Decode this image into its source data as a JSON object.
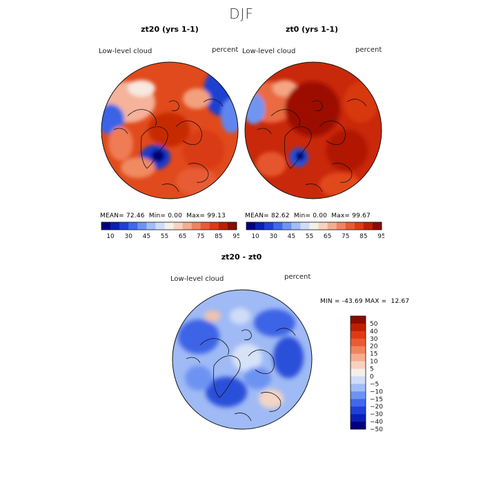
{
  "figure": {
    "season_title": "DJF",
    "colors": {
      "neg_strong": "#00007f",
      "neg_mid": "#2b57e0",
      "neg_light": "#bcd2f7",
      "neutral": "#f4efe8",
      "pos_light": "#f6bca2",
      "pos_mid": "#e8461a",
      "pos_strong": "#8b0a00"
    }
  },
  "panels": [
    {
      "id": "zt20",
      "title": "zt20 (yrs 1-1)",
      "variable_label": "Low-level cloud",
      "units_label": "percent",
      "stats": {
        "mean": "72.46",
        "min": "0.00",
        "max": "99.13"
      },
      "mean_label": "MEAN=",
      "min_label": "Min=",
      "max_label": "Max="
    },
    {
      "id": "zt0",
      "title": "zt0 (yrs 1-1)",
      "variable_label": "Low-level cloud",
      "units_label": "percent",
      "stats": {
        "mean": "82.62",
        "min": "0.00",
        "max": "99.67"
      },
      "mean_label": "MEAN=",
      "min_label": "Min=",
      "max_label": "Max="
    }
  ],
  "abs_colorbar": {
    "tick_labels": [
      "10",
      "30",
      "45",
      "55",
      "65",
      "75",
      "85",
      "95"
    ],
    "colors": [
      "#00007f",
      "#0a1fb5",
      "#1f3fd8",
      "#3f68ec",
      "#6d93f2",
      "#a1bcf6",
      "#cfdcf8",
      "#f3efe9",
      "#f8d2c0",
      "#f5ad8e",
      "#f0845f",
      "#ea5a33",
      "#df3a12",
      "#bf1e00",
      "#8b0a00"
    ]
  },
  "diff_panel": {
    "title": "zt20 - zt0",
    "variable_label": "Low-level cloud",
    "units_label": "percent",
    "min_label": "MIN =",
    "min_value": "-43.69",
    "max_label": "MAX =",
    "max_value": "12.67"
  },
  "diff_colorbar": {
    "tick_labels": [
      "50",
      "40",
      "30",
      "20",
      "15",
      "10",
      "5",
      "0",
      "−5",
      "−10",
      "−15",
      "−20",
      "−30",
      "−40",
      "−50"
    ],
    "colors": [
      "#8b0a00",
      "#bf1e00",
      "#df3a12",
      "#ea5a33",
      "#f0845f",
      "#f5ad8e",
      "#f8d2c0",
      "#f3efe9",
      "#cfdcf8",
      "#a1bcf6",
      "#6d93f2",
      "#3f68ec",
      "#1f3fd8",
      "#0a1fb5",
      "#00007f"
    ]
  }
}
